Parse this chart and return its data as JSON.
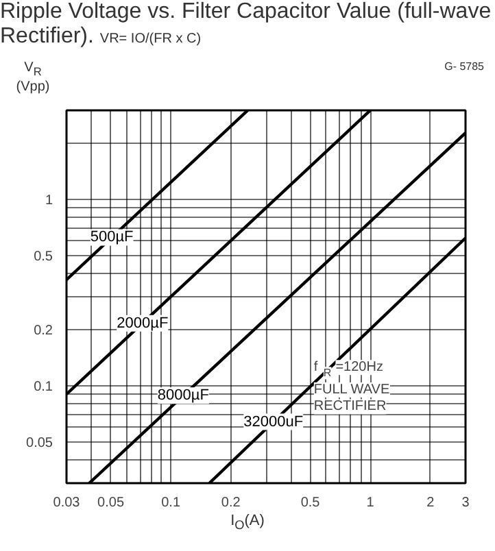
{
  "chart_data": {
    "type": "line",
    "title": "Ripple Voltage vs. Filter Capacitor Value (full-wave Rectifier).",
    "subtitle": "VR= IO/(FR x C)",
    "xlabel": "I$_{O}$(A)",
    "ylabel": "V$_{R}$ (Vpp)",
    "log": "xy",
    "grid": true,
    "xlim": [
      0.03,
      3
    ],
    "ylim": [
      0.03,
      3
    ],
    "xticks": [
      0.03,
      0.05,
      0.1,
      0.2,
      0.5,
      1,
      2,
      3
    ],
    "yticks": [
      0.05,
      0.1,
      0.2,
      0.5,
      1
    ],
    "series": [
      {
        "name": "500µF",
        "color": "#000000",
        "x": [
          0.03,
          0.243
        ],
        "values": [
          0.37,
          3
        ]
      },
      {
        "name": "2000µF",
        "color": "#000000",
        "x": [
          0.03,
          1.0
        ],
        "values": [
          0.09,
          3
        ]
      },
      {
        "name": "8000µF",
        "color": "#000000",
        "x": [
          0.039,
          3
        ],
        "values": [
          0.03,
          2.27
        ]
      },
      {
        "name": "32000uF",
        "color": "#000000",
        "x": [
          0.156,
          3
        ],
        "values": [
          0.03,
          0.62
        ]
      }
    ],
    "annotations": [
      "G- 5785",
      "f$_{R}$ =120Hz",
      "FULL WAVE RECTIFIER"
    ],
    "marker": "none",
    "line_style": "solid"
  }
}
